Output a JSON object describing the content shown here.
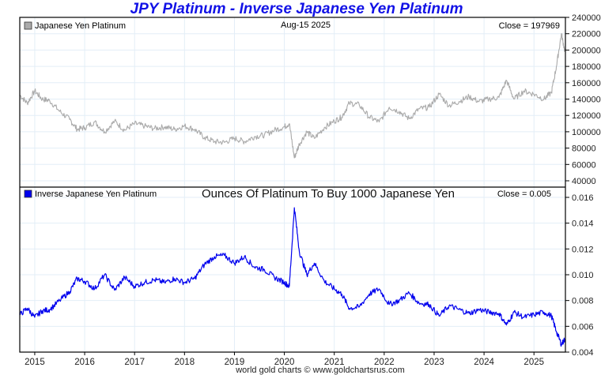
{
  "title": "JPY Platinum - Inverse Japanese Yen Platinum",
  "footer": "world gold charts © www.goldchartsrus.com",
  "colors": {
    "title": "#1212e6",
    "top_series": "#aaaaaa",
    "bottom_series": "#0000ee",
    "grid": "#e3eef7"
  },
  "chart_data": [
    {
      "type": "line",
      "panel": "top",
      "legend": "Japanese Yen Platinum",
      "legend_placement": "top-left",
      "date_label": "Aug-15  2025",
      "close_label": "Close = 197969",
      "ylim": [
        40000,
        240000
      ],
      "yticks": [
        240000,
        220000,
        200000,
        180000,
        160000,
        140000,
        120000,
        100000,
        80000,
        60000,
        40000
      ],
      "ytick_labels": [
        "240000",
        "220000",
        "200000",
        "180000",
        "160000",
        "140000",
        "120000",
        "100000",
        "80000",
        "60000",
        "40000"
      ],
      "grid": true,
      "x": [
        2014.7,
        2014.85,
        2015.0,
        2015.15,
        2015.3,
        2015.5,
        2015.7,
        2015.85,
        2016.0,
        2016.2,
        2016.4,
        2016.6,
        2016.8,
        2017.0,
        2017.2,
        2017.4,
        2017.6,
        2017.8,
        2018.0,
        2018.2,
        2018.4,
        2018.6,
        2018.8,
        2019.0,
        2019.2,
        2019.4,
        2019.6,
        2019.8,
        2020.0,
        2020.1,
        2020.2,
        2020.3,
        2020.45,
        2020.6,
        2020.8,
        2021.0,
        2021.15,
        2021.3,
        2021.5,
        2021.7,
        2021.9,
        2022.1,
        2022.3,
        2022.5,
        2022.7,
        2022.9,
        2023.1,
        2023.3,
        2023.5,
        2023.7,
        2023.9,
        2024.1,
        2024.3,
        2024.45,
        2024.6,
        2024.8,
        2025.0,
        2025.2,
        2025.35,
        2025.45,
        2025.55,
        2025.62
      ],
      "values": [
        145000,
        135000,
        150000,
        140000,
        138000,
        125000,
        115000,
        103000,
        105000,
        112000,
        100000,
        113000,
        102000,
        110000,
        107000,
        104000,
        106000,
        103000,
        107000,
        103000,
        93000,
        88000,
        87000,
        92000,
        88000,
        94000,
        96000,
        102000,
        106000,
        110000,
        68000,
        85000,
        100000,
        92000,
        105000,
        113000,
        118000,
        135000,
        133000,
        118000,
        112000,
        130000,
        125000,
        116000,
        128000,
        130000,
        146000,
        132000,
        137000,
        143000,
        137000,
        140000,
        142000,
        163000,
        140000,
        150000,
        146000,
        140000,
        148000,
        180000,
        220000,
        198000
      ]
    },
    {
      "type": "line",
      "panel": "bottom",
      "legend": "Inverse Japanese Yen Platinum",
      "legend_placement": "top-left",
      "subtitle": "Ounces Of Platinum To Buy 1000 Japanese Yen",
      "close_label": "Close = 0.005",
      "ylim": [
        0.004,
        0.016
      ],
      "yticks": [
        0.016,
        0.014,
        0.012,
        0.01,
        0.008,
        0.006,
        0.004
      ],
      "ytick_labels": [
        "0.016",
        "0.014",
        "0.012",
        "0.010",
        "0.008",
        "0.006",
        "0.004"
      ],
      "grid": true,
      "x": [
        2014.7,
        2014.85,
        2015.0,
        2015.15,
        2015.3,
        2015.5,
        2015.7,
        2015.85,
        2016.0,
        2016.2,
        2016.4,
        2016.6,
        2016.8,
        2017.0,
        2017.2,
        2017.4,
        2017.6,
        2017.8,
        2018.0,
        2018.2,
        2018.4,
        2018.6,
        2018.8,
        2019.0,
        2019.2,
        2019.4,
        2019.6,
        2019.8,
        2020.0,
        2020.1,
        2020.2,
        2020.3,
        2020.45,
        2020.6,
        2020.8,
        2021.0,
        2021.15,
        2021.3,
        2021.5,
        2021.7,
        2021.9,
        2022.1,
        2022.3,
        2022.5,
        2022.7,
        2022.9,
        2023.1,
        2023.3,
        2023.5,
        2023.7,
        2023.9,
        2024.1,
        2024.3,
        2024.45,
        2024.6,
        2024.8,
        2025.0,
        2025.2,
        2025.35,
        2025.45,
        2025.55,
        2025.62
      ],
      "values": [
        0.0069,
        0.0074,
        0.0067,
        0.0072,
        0.0073,
        0.008,
        0.0087,
        0.0097,
        0.0095,
        0.0089,
        0.01,
        0.0088,
        0.0098,
        0.0091,
        0.0094,
        0.0096,
        0.0094,
        0.0097,
        0.0094,
        0.0097,
        0.0108,
        0.0114,
        0.0115,
        0.0109,
        0.0114,
        0.0106,
        0.0104,
        0.0098,
        0.0094,
        0.0091,
        0.0152,
        0.0118,
        0.01,
        0.0109,
        0.0095,
        0.0089,
        0.0085,
        0.0074,
        0.0075,
        0.0085,
        0.0089,
        0.0077,
        0.008,
        0.0086,
        0.0078,
        0.0077,
        0.0068,
        0.0076,
        0.0073,
        0.007,
        0.0073,
        0.0071,
        0.007,
        0.0061,
        0.0071,
        0.0067,
        0.0069,
        0.0071,
        0.0068,
        0.0056,
        0.0046,
        0.005
      ]
    }
  ],
  "x_axis": {
    "xlim": [
      2014.7,
      2025.63
    ],
    "ticks": [
      2015,
      2016,
      2017,
      2018,
      2019,
      2020,
      2021,
      2022,
      2023,
      2024,
      2025
    ],
    "tick_labels": [
      "2015",
      "2016",
      "2017",
      "2018",
      "2019",
      "2020",
      "2021",
      "2022",
      "2023",
      "2024",
      "2025"
    ]
  }
}
